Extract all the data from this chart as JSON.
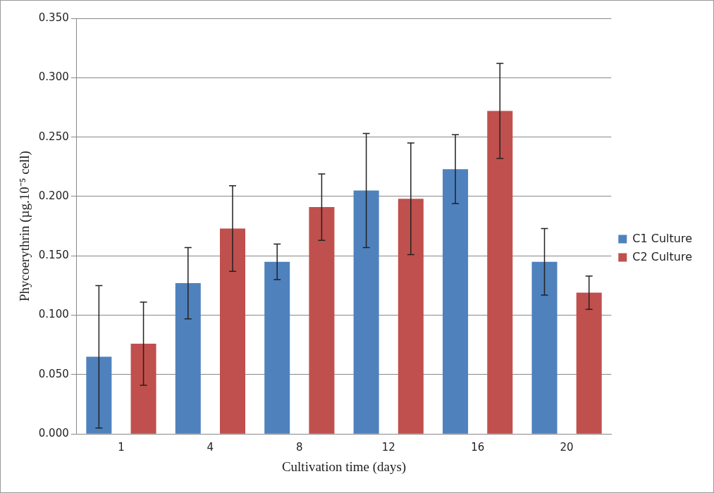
{
  "chart_data": {
    "type": "bar",
    "xlabel": "Cultivation time (days)",
    "ylabel": "Phycoerythrin (µg.10⁻⁵ cell)",
    "categories": [
      "1",
      "4",
      "8",
      "12",
      "16",
      "20"
    ],
    "series": [
      {
        "name": "C1 Culture",
        "color": "#4f81bd",
        "values": [
          0.065,
          0.127,
          0.145,
          0.205,
          0.223,
          0.145
        ],
        "errors": [
          0.06,
          0.03,
          0.015,
          0.048,
          0.029,
          0.028
        ]
      },
      {
        "name": "C2 Culture",
        "color": "#c0504d",
        "values": [
          0.076,
          0.173,
          0.191,
          0.198,
          0.272,
          0.119
        ],
        "errors": [
          0.035,
          0.036,
          0.028,
          0.047,
          0.04,
          0.014
        ]
      }
    ],
    "ylim": [
      0,
      0.35
    ],
    "yticks": [
      {
        "value": 0,
        "label": "0.000"
      },
      {
        "value": 0.05,
        "label": "0.050"
      },
      {
        "value": 0.1,
        "label": "0.100"
      },
      {
        "value": 0.15,
        "label": "0.150"
      },
      {
        "value": 0.2,
        "label": "0.200"
      },
      {
        "value": 0.25,
        "label": "0.250"
      },
      {
        "value": 0.3,
        "label": "0.300"
      },
      {
        "value": 0.35,
        "label": "0.350"
      }
    ],
    "grid": "y",
    "legend": "right"
  }
}
